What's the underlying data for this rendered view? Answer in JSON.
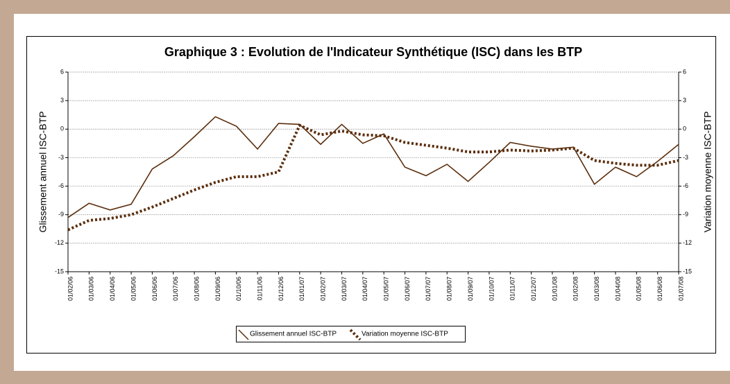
{
  "chart_data": {
    "type": "line",
    "title": "Graphique 3 : Evolution de l'Indicateur Synthétique (ISC) dans les BTP",
    "ylabel": "Glissement annuel ISC-BTP",
    "y2label": "Variation moyenne ISC-BTP",
    "categories": [
      "01/02/06",
      "01/03/06",
      "01/04/06",
      "01/05/06",
      "01/06/06",
      "01/07/06",
      "01/08/06",
      "01/09/06",
      "01/10/06",
      "01/11/06",
      "01/12/06",
      "01/01/07",
      "01/02/07",
      "01/03/07",
      "01/04/07",
      "01/05/07",
      "01/06/07",
      "01/07/07",
      "01/08/07",
      "01/09/07",
      "01/10/07",
      "01/11/07",
      "01/12/07",
      "01/01/08",
      "01/02/08",
      "01/03/08",
      "01/04/08",
      "01/05/08",
      "01/06/08",
      "01/07/08"
    ],
    "series": [
      {
        "name": "Glissement annuel ISC-BTP",
        "color": "#5a2d0c",
        "style": "solid",
        "values": [
          -9.3,
          -7.8,
          -8.5,
          -7.9,
          -4.2,
          -2.8,
          -0.8,
          1.3,
          0.3,
          -2.1,
          0.6,
          0.5,
          -1.6,
          0.5,
          -1.5,
          -0.5,
          -4.0,
          -4.9,
          -3.7,
          -5.5,
          -3.5,
          -1.4,
          -1.8,
          -2.1,
          -1.9,
          -5.8,
          -4.0,
          -5.0,
          -3.4,
          -1.6
        ]
      },
      {
        "name": "Variation moyenne ISC-BTP",
        "color": "#5a2d0c",
        "style": "dotted",
        "values": [
          -10.6,
          -9.6,
          -9.4,
          -9.0,
          -8.2,
          -7.3,
          -6.4,
          -5.6,
          -5.0,
          -5.0,
          -4.5,
          0.4,
          -0.6,
          -0.2,
          -0.6,
          -0.7,
          -1.4,
          -1.7,
          -2.0,
          -2.4,
          -2.4,
          -2.2,
          -2.3,
          -2.2,
          -2.0,
          -3.3,
          -3.6,
          -3.8,
          -3.8,
          -3.3
        ]
      }
    ],
    "ylim": [
      -15,
      6
    ],
    "yticks": [
      -15,
      -12,
      -9,
      -6,
      -3,
      0,
      3,
      6
    ],
    "y2lim": [
      -15,
      6
    ],
    "y2ticks": [
      -15,
      -12,
      -9,
      -6,
      -3,
      0,
      3,
      6
    ],
    "grid": true,
    "legend": "bottom"
  }
}
